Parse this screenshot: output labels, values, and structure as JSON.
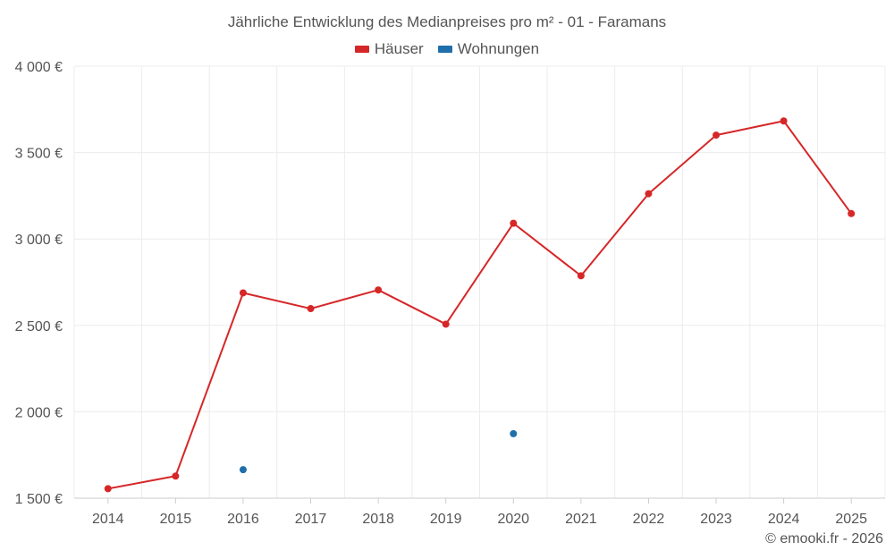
{
  "chart_data": {
    "type": "line",
    "title": "Jährliche Entwicklung des Medianpreises pro m² - 01 - Faramans",
    "categories": [
      "2014",
      "2015",
      "2016",
      "2017",
      "2018",
      "2019",
      "2020",
      "2021",
      "2022",
      "2023",
      "2024",
      "2025"
    ],
    "series": [
      {
        "name": "Häuser",
        "color": "#d62728",
        "values": [
          1555,
          1628,
          2688,
          2597,
          2705,
          2507,
          3091,
          2787,
          3262,
          3601,
          3683,
          3147
        ],
        "line": true
      },
      {
        "name": "Wohnungen",
        "color": "#1f6fab",
        "values": [
          null,
          null,
          1665,
          null,
          null,
          null,
          1873,
          null,
          null,
          null,
          null,
          null
        ],
        "line": false
      }
    ],
    "ylim": [
      1500,
      4000
    ],
    "yticks": [
      1500,
      2000,
      2500,
      3000,
      3500,
      4000
    ],
    "ytick_labels": [
      "1 500 €",
      "2 000 €",
      "2 500 €",
      "3 000 €",
      "3 500 €",
      "4 000 €"
    ],
    "xlabel": "",
    "ylabel": "",
    "grid": true,
    "legend_position": "top-center"
  },
  "credit": "© emooki.fr - 2026"
}
